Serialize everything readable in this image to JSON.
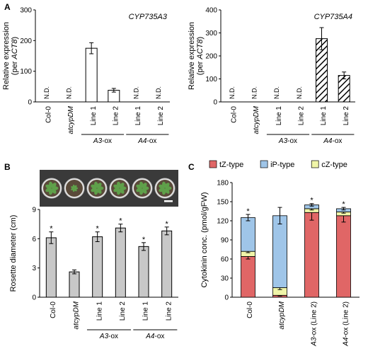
{
  "panels": {
    "A": {
      "label": "A",
      "charts": [
        {
          "type": "bar",
          "title": "CYP735A3",
          "ylabel": "Relative expression",
          "ylabel2": "(per ACT8)",
          "ylim": [
            0,
            300
          ],
          "yticks": [
            0,
            100,
            200,
            300
          ],
          "categories": [
            "Col-0",
            "atcypDM",
            "Line 1",
            "Line 2",
            "Line 1",
            "Line 2"
          ],
          "values": [
            null,
            null,
            175,
            38,
            null,
            null
          ],
          "errors": [
            null,
            null,
            18,
            6,
            null,
            null
          ],
          "nd_label": "N.D.",
          "fill": "#ffffff",
          "hatched": false,
          "groups": [
            {
              "label": "A3-ox",
              "from": 2,
              "to": 3
            },
            {
              "label": "A4-ox",
              "from": 4,
              "to": 5
            }
          ]
        },
        {
          "type": "bar",
          "title": "CYP735A4",
          "ylabel": "Relative expression",
          "ylabel2": "(per ACT8)",
          "ylim": [
            0,
            400
          ],
          "yticks": [
            0,
            100,
            200,
            300,
            400
          ],
          "categories": [
            "Col-0",
            "atcypDM",
            "Line 1",
            "Line 2",
            "Line 1",
            "Line 2"
          ],
          "values": [
            null,
            null,
            null,
            null,
            275,
            115
          ],
          "errors": [
            null,
            null,
            null,
            null,
            48,
            15
          ],
          "nd_label": "N.D.",
          "fill": "#ffffff",
          "hatched": true,
          "groups": [
            {
              "label": "A3-ox",
              "from": 2,
              "to": 3
            },
            {
              "label": "A4-ox",
              "from": 4,
              "to": 5
            }
          ]
        }
      ]
    },
    "B": {
      "label": "B",
      "chart": {
        "type": "bar",
        "ylabel": "Rosette diameter (cm)",
        "ylim": [
          0,
          9
        ],
        "yticks": [
          0,
          3,
          6,
          9
        ],
        "categories": [
          "Col-0",
          "atcypDM",
          "Line 1",
          "Line 2",
          "Line 1",
          "Line 2"
        ],
        "values": [
          6.1,
          2.6,
          6.2,
          7.1,
          5.2,
          6.8
        ],
        "errors": [
          0.6,
          0.2,
          0.5,
          0.4,
          0.4,
          0.4
        ],
        "significance": [
          "*",
          "",
          "*",
          "*",
          "*",
          "*"
        ],
        "fill": "#c8c8c8",
        "groups": [
          {
            "label": "A3-ox",
            "from": 2,
            "to": 3
          },
          {
            "label": "A4-ox",
            "from": 4,
            "to": 5
          }
        ]
      }
    },
    "C": {
      "label": "C",
      "chart": {
        "type": "bar",
        "stacked": true,
        "ylabel": "Cytokinin conc. (pmol/gFW)",
        "ylim": [
          0,
          180
        ],
        "yticks": [
          0,
          30,
          60,
          90,
          120,
          150,
          180
        ],
        "categories": [
          "Col-0",
          "atcypDM",
          "A3-ox (Line 2)",
          "A4-ox (Line 2)"
        ],
        "series": [
          {
            "name": "tZ-type",
            "color": "#e06666",
            "values": [
              64,
              3,
              133,
              128
            ],
            "errors": [
              4,
              1,
              12,
              10
            ]
          },
          {
            "name": "cZ-type",
            "color": "#f0f5a8",
            "values": [
              8,
              12,
              6,
              6
            ],
            "errors": [
              2,
              3,
              2,
              2
            ]
          },
          {
            "name": "iP-type",
            "color": "#9fc5e8",
            "values": [
              53,
              113,
              6,
              5
            ],
            "errors": [
              5,
              13,
              2,
              2
            ]
          }
        ],
        "legend_order": [
          "tZ-type",
          "iP-type",
          "cZ-type"
        ],
        "significance": [
          "*",
          "",
          "*",
          "*"
        ]
      }
    }
  }
}
